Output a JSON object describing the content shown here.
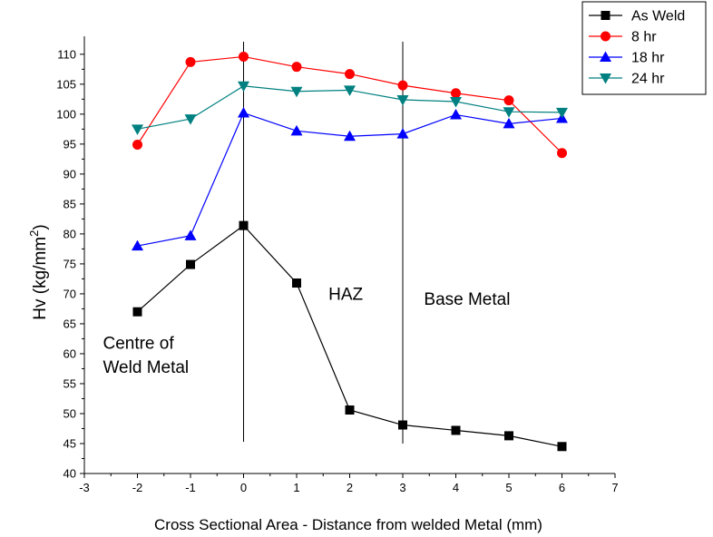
{
  "chart_data": {
    "type": "line",
    "title": "",
    "xlabel": "Cross Sectional Area - Distance from welded Metal (mm)",
    "ylabel_base": "Hv (kg/mm",
    "ylabel_sup": "2",
    "ylabel_close": ")",
    "xlim": [
      -3,
      7
    ],
    "ylim": [
      40,
      113
    ],
    "xticks": [
      -3,
      -2,
      -1,
      0,
      1,
      2,
      3,
      4,
      5,
      6,
      7
    ],
    "yticks": [
      40,
      45,
      50,
      55,
      60,
      65,
      70,
      75,
      80,
      85,
      90,
      95,
      100,
      105,
      110
    ],
    "grid": false,
    "legend_position": "top-right",
    "series": [
      {
        "name": "As Weld",
        "color": "#000000",
        "marker": "square",
        "x": [
          -2,
          -1,
          0,
          1,
          2,
          3,
          4,
          5,
          6
        ],
        "values": [
          67.0,
          74.9,
          81.4,
          71.8,
          50.6,
          48.1,
          47.2,
          46.3,
          44.5
        ]
      },
      {
        "name": "8 hr",
        "color": "#ff0000",
        "marker": "circle",
        "x": [
          -2,
          -1,
          0,
          1,
          2,
          3,
          4,
          5,
          6
        ],
        "values": [
          94.9,
          108.7,
          109.6,
          107.9,
          106.7,
          104.8,
          103.5,
          102.3,
          93.5
        ]
      },
      {
        "name": "18 hr",
        "color": "#0000ff",
        "marker": "triangle-up",
        "x": [
          -2,
          -1,
          0,
          1,
          2,
          3,
          4,
          5,
          6
        ],
        "values": [
          78.0,
          79.7,
          100.2,
          97.2,
          96.3,
          96.7,
          99.9,
          98.4,
          99.3
        ]
      },
      {
        "name": "24 hr",
        "color": "#008080",
        "marker": "triangle-down",
        "x": [
          -2,
          -1,
          0,
          1,
          2,
          3,
          4,
          5,
          6
        ],
        "values": [
          97.5,
          99.2,
          104.7,
          103.8,
          104.0,
          102.4,
          102.1,
          100.4,
          100.3
        ]
      }
    ],
    "reference_lines": [
      {
        "x": 0,
        "y_from": 45.3,
        "y_to": 118
      },
      {
        "x": 3,
        "y_from": 45.0,
        "y_to": 118
      }
    ],
    "annotations": [
      {
        "text": "Centre of",
        "x": -2.65,
        "y": 60.8
      },
      {
        "text": "Weld Metal",
        "x": -2.65,
        "y": 56.8
      },
      {
        "text": "HAZ",
        "x": 1.6,
        "y": 69.0
      },
      {
        "text": "Base Metal",
        "x": 3.4,
        "y": 68.2
      }
    ]
  }
}
